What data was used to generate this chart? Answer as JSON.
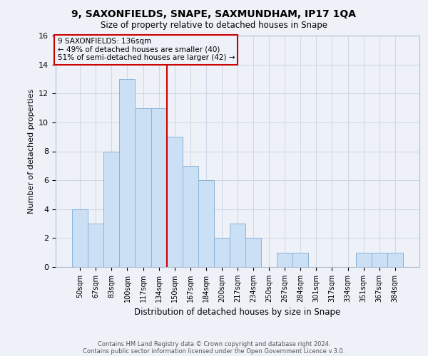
{
  "title": "9, SAXONFIELDS, SNAPE, SAXMUNDHAM, IP17 1QA",
  "subtitle": "Size of property relative to detached houses in Snape",
  "xlabel": "Distribution of detached houses by size in Snape",
  "ylabel": "Number of detached properties",
  "footer_line1": "Contains HM Land Registry data © Crown copyright and database right 2024.",
  "footer_line2": "Contains public sector information licensed under the Open Government Licence v.3.0.",
  "bar_labels": [
    "50sqm",
    "67sqm",
    "83sqm",
    "100sqm",
    "117sqm",
    "134sqm",
    "150sqm",
    "167sqm",
    "184sqm",
    "200sqm",
    "217sqm",
    "234sqm",
    "250sqm",
    "267sqm",
    "284sqm",
    "301sqm",
    "317sqm",
    "334sqm",
    "351sqm",
    "367sqm",
    "384sqm"
  ],
  "bar_values": [
    4,
    3,
    8,
    13,
    11,
    11,
    9,
    7,
    6,
    2,
    3,
    2,
    0,
    1,
    1,
    0,
    0,
    0,
    1,
    1,
    1
  ],
  "bar_color": "#cce0f5",
  "bar_edge_color": "#8ab4d8",
  "vline_x": 5.5,
  "vline_color": "#cc0000",
  "ylim": [
    0,
    16
  ],
  "yticks": [
    0,
    2,
    4,
    6,
    8,
    10,
    12,
    14,
    16
  ],
  "annotation_text": "9 SAXONFIELDS: 136sqm\n← 49% of detached houses are smaller (40)\n51% of semi-detached houses are larger (42) →",
  "annotation_box_edge": "#cc0000",
  "grid_color": "#d0d8e8",
  "bg_color": "#eef2f8"
}
